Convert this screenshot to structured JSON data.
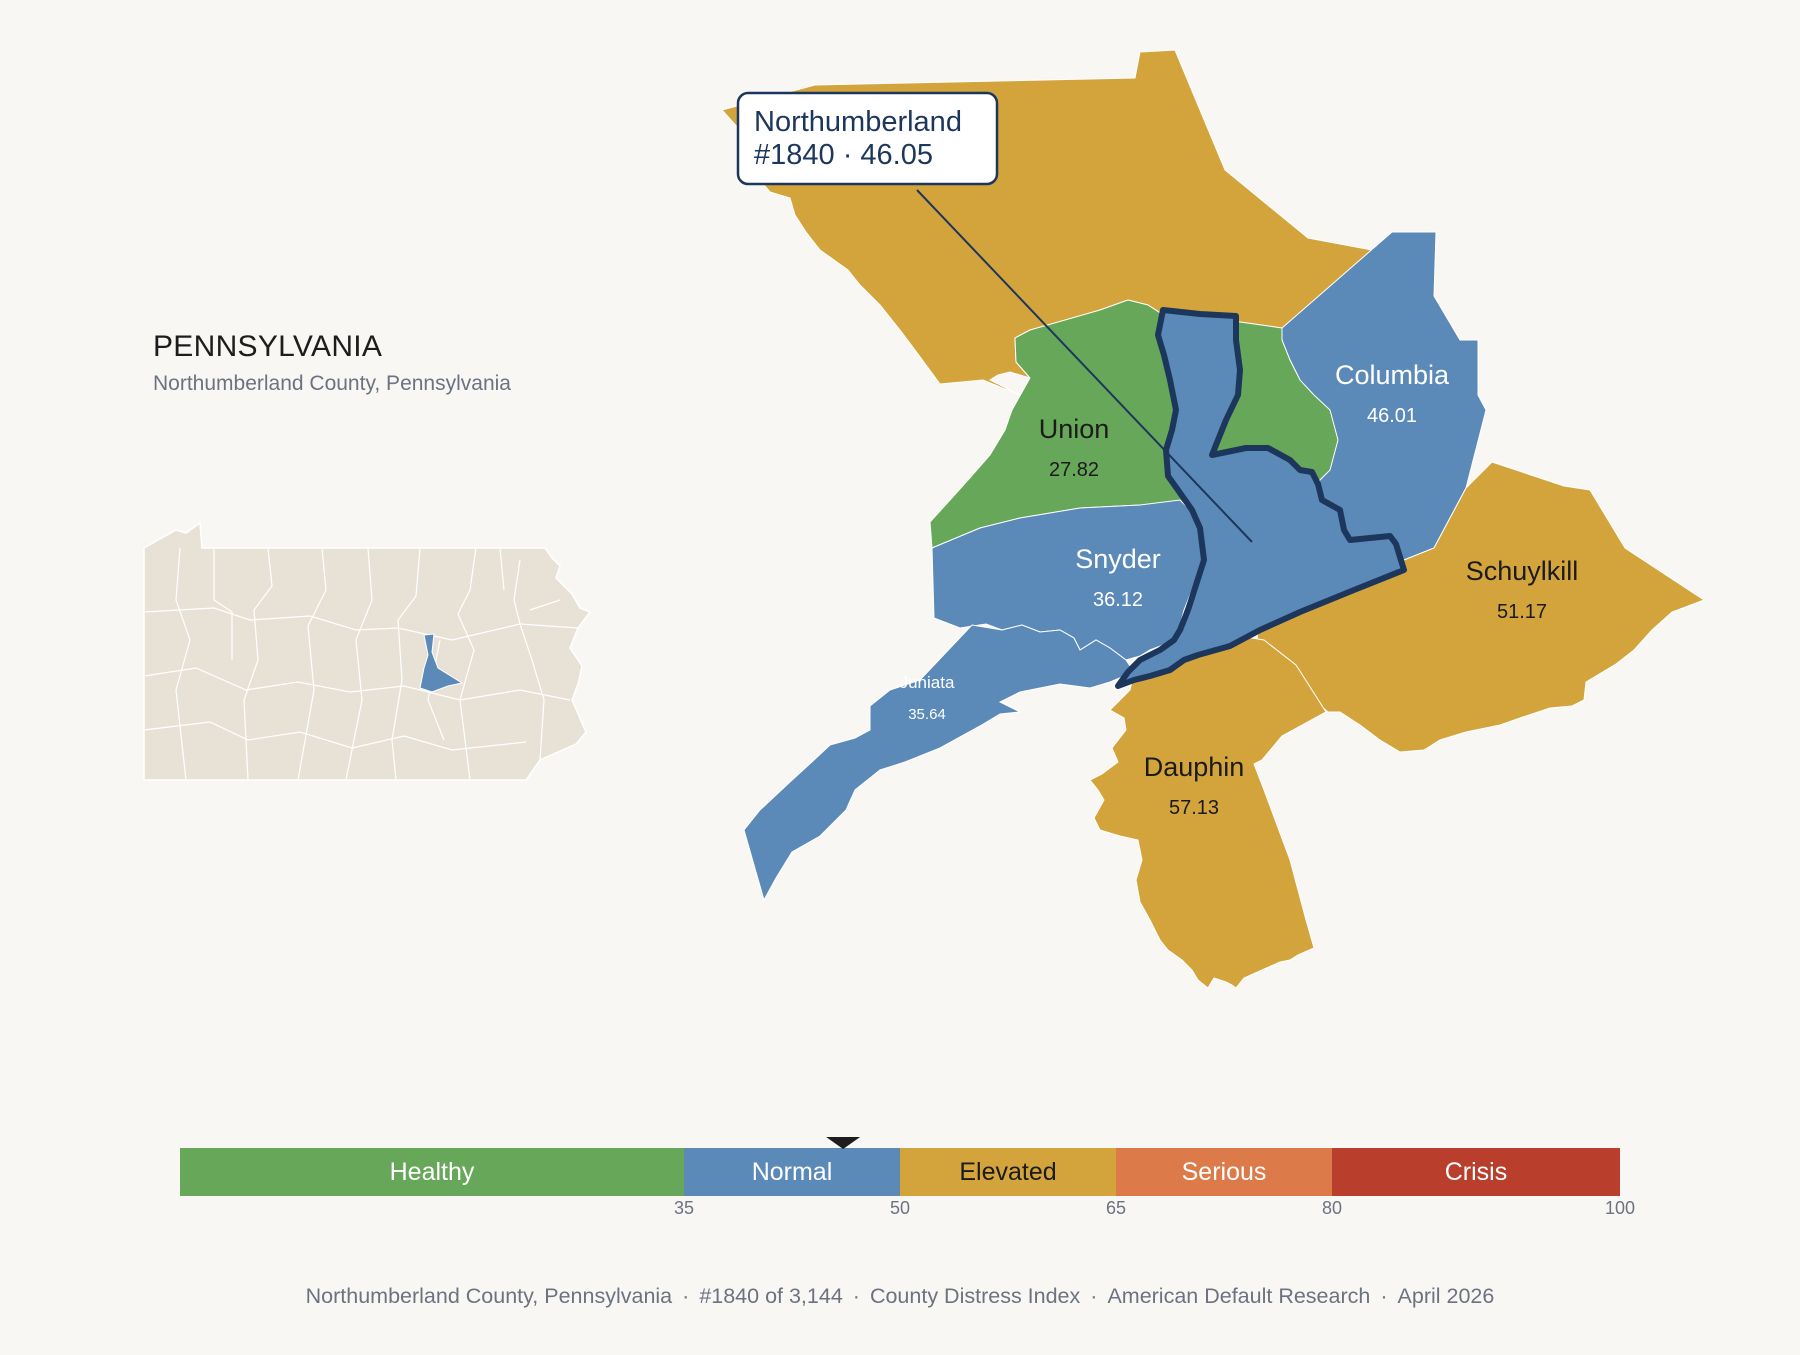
{
  "header": {
    "state_name": "PENNSYLVANIA",
    "subtitle": "Northumberland County, Pennsylvania"
  },
  "callout": {
    "county": "Northumberland",
    "rank_score": "#1840 · 46.05"
  },
  "focus_county": {
    "name": "Northumberland",
    "rank": "#1840",
    "score": 46.05,
    "category": "Normal"
  },
  "neighbors": [
    {
      "name": "Union",
      "score": "27.82",
      "category": "Healthy"
    },
    {
      "name": "Columbia",
      "score": "46.01",
      "category": "Normal"
    },
    {
      "name": "Snyder",
      "score": "36.12",
      "category": "Normal"
    },
    {
      "name": "Schuylkill",
      "score": "51.17",
      "category": "Elevated"
    },
    {
      "name": "Juniata",
      "score": "35.64",
      "category": "Normal"
    },
    {
      "name": "Dauphin",
      "score": "57.13",
      "category": "Elevated"
    },
    {
      "name": "",
      "score": "",
      "category": "Elevated",
      "note": "unlabeled northern county"
    }
  ],
  "legend": {
    "bands": [
      {
        "label": "Healthy",
        "from": 0,
        "to": 35,
        "color": "#67a759"
      },
      {
        "label": "Normal",
        "from": 35,
        "to": 50,
        "color": "#5b8ab9"
      },
      {
        "label": "Elevated",
        "from": 50,
        "to": 65,
        "color": "#d3a43c"
      },
      {
        "label": "Serious",
        "from": 65,
        "to": 80,
        "color": "#dc7a4a"
      },
      {
        "label": "Crisis",
        "from": 80,
        "to": 100,
        "color": "#b93e2c"
      }
    ],
    "ticks": [
      "35",
      "50",
      "65",
      "80",
      "100"
    ],
    "marker_value": 46.05
  },
  "footer": {
    "location": "Northumberland County, Pennsylvania",
    "rank": "#1840 of 3,144",
    "index_name": "County Distress Index",
    "publisher": "American Default Research",
    "date": "April 2026"
  },
  "colors": {
    "background": "#f9f7f4",
    "healthy": "#67a759",
    "normal": "#5b8ab9",
    "elevated": "#d3a43c",
    "highlight_outline": "#1d365c",
    "inset_fill": "#e8e2d6"
  }
}
